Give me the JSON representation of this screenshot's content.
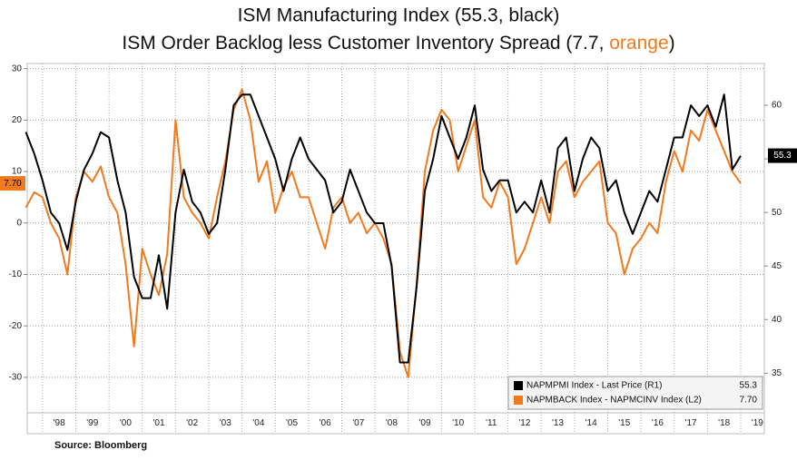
{
  "chart_data": {
    "type": "line",
    "title": "ISM Manufacturing Index (55.3, black)",
    "subtitle_parts": [
      "ISM Order Backlog less Customer Inventory Spread (7.7, ",
      "orange",
      ")"
    ],
    "source": "Source: Bloomberg",
    "x": [
      1997.5,
      1997.75,
      1998,
      1998.25,
      1998.5,
      1998.75,
      1999,
      1999.25,
      1999.5,
      1999.75,
      2000,
      2000.25,
      2000.5,
      2000.75,
      2001,
      2001.25,
      2001.5,
      2001.75,
      2002,
      2002.25,
      2002.5,
      2002.75,
      2003,
      2003.25,
      2003.5,
      2003.75,
      2004,
      2004.25,
      2004.5,
      2004.75,
      2005,
      2005.25,
      2005.5,
      2005.75,
      2006,
      2006.25,
      2006.5,
      2006.75,
      2007,
      2007.25,
      2007.5,
      2007.75,
      2008,
      2008.25,
      2008.5,
      2008.75,
      2009,
      2009.25,
      2009.5,
      2009.75,
      2010,
      2010.25,
      2010.5,
      2010.75,
      2011,
      2011.25,
      2011.5,
      2011.75,
      2012,
      2012.25,
      2012.5,
      2012.75,
      2013,
      2013.25,
      2013.5,
      2013.75,
      2014,
      2014.25,
      2014.5,
      2014.75,
      2015,
      2015.25,
      2015.5,
      2015.75,
      2016,
      2016.25,
      2016.5,
      2016.75,
      2017,
      2017.25,
      2017.5,
      2017.75,
      2018,
      2018.25,
      2018.5,
      2018.75,
      2019
    ],
    "series": [
      {
        "name": "NAPMPMI Index - Last Price (R1)",
        "last_label": "55.3",
        "color": "#000000",
        "axis": "y2",
        "values": [
          57.5,
          55.5,
          53,
          50,
          49,
          46.5,
          51,
          54,
          55.5,
          57.5,
          57,
          53,
          50,
          44,
          42,
          42,
          46,
          41,
          50,
          54,
          51,
          50,
          48,
          49,
          54,
          60,
          61,
          61,
          59,
          57,
          55,
          52,
          55,
          57,
          55,
          54,
          53,
          50,
          51,
          54,
          52,
          50,
          49,
          49,
          45,
          36,
          36,
          43,
          52,
          55,
          59,
          57,
          55,
          57,
          60,
          54,
          52,
          53,
          53,
          50,
          51,
          50,
          53,
          50,
          56,
          57,
          52,
          55,
          57,
          56,
          52,
          53,
          50,
          48,
          50,
          52,
          51,
          54,
          57,
          57,
          60,
          59,
          60,
          58,
          61,
          54,
          55.3
        ]
      },
      {
        "name": "NAPMBACK Index - NAPMCINV Index (L2)",
        "last_label": "7.70",
        "color": "#f07a1e",
        "axis": "y",
        "values": [
          3,
          6,
          5,
          0,
          -3,
          -10,
          5,
          10,
          8,
          11,
          5,
          2,
          -8,
          -24,
          -5,
          -10,
          -14,
          -6,
          20,
          5,
          2,
          0,
          -3,
          5,
          12,
          22,
          26,
          20,
          8,
          12,
          2,
          7,
          10,
          5,
          5,
          0,
          -5,
          3,
          5,
          0,
          2,
          -2,
          0,
          -3,
          -8,
          -25,
          -30,
          -12,
          10,
          18,
          22,
          20,
          10,
          15,
          20,
          5,
          3,
          8,
          5,
          -8,
          -5,
          0,
          5,
          0,
          10,
          12,
          5,
          8,
          10,
          12,
          0,
          -2,
          -10,
          -5,
          -3,
          0,
          -2,
          8,
          14,
          10,
          18,
          16,
          22,
          18,
          14,
          10,
          7.7
        ]
      }
    ],
    "xlim": [
      1997.54,
      2019.71
    ],
    "xticks": [
      {
        "value": 1998.5,
        "label": "'98"
      },
      {
        "value": 1999.5,
        "label": "'99"
      },
      {
        "value": 2000.5,
        "label": "'00"
      },
      {
        "value": 2001.5,
        "label": "'01"
      },
      {
        "value": 2002.5,
        "label": "'02"
      },
      {
        "value": 2003.5,
        "label": "'03"
      },
      {
        "value": 2004.5,
        "label": "'04"
      },
      {
        "value": 2005.5,
        "label": "'05"
      },
      {
        "value": 2006.5,
        "label": "'06"
      },
      {
        "value": 2007.5,
        "label": "'07"
      },
      {
        "value": 2008.5,
        "label": "'08"
      },
      {
        "value": 2009.5,
        "label": "'09"
      },
      {
        "value": 2010.5,
        "label": "'10"
      },
      {
        "value": 2011.5,
        "label": "'11"
      },
      {
        "value": 2012.5,
        "label": "'12"
      },
      {
        "value": 2013.5,
        "label": "'13"
      },
      {
        "value": 2014.5,
        "label": "'14"
      },
      {
        "value": 2015.5,
        "label": "'15"
      },
      {
        "value": 2016.5,
        "label": "'16"
      },
      {
        "value": 2017.5,
        "label": "'17"
      },
      {
        "value": 2018.5,
        "label": "'18"
      },
      {
        "value": 2019.5,
        "label": "'19"
      }
    ],
    "ylim": [
      -36.9,
      31
    ],
    "yticks": [
      -30,
      -20,
      -10,
      0,
      10,
      20,
      30
    ],
    "y2lim": [
      31.3,
      63.9
    ],
    "y2ticks": [
      35,
      40,
      45,
      50,
      55,
      60
    ],
    "grid": true,
    "legend": "lower right"
  }
}
